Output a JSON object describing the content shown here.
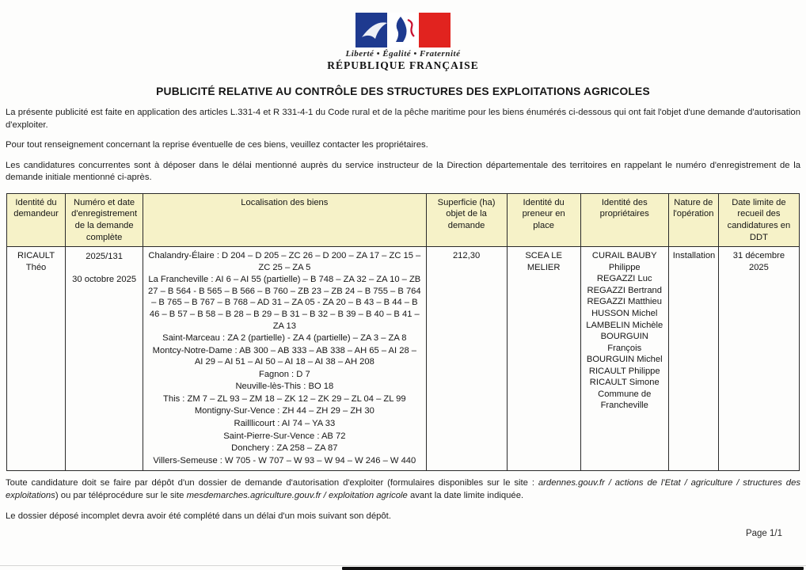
{
  "logo": {
    "motto": "Liberté • Égalité • Fraternité",
    "name": "RÉPUBLIQUE FRANÇAISE"
  },
  "title": "PUBLICITÉ RELATIVE AU CONTRÔLE DES STRUCTURES DES EXPLOITATIONS AGRICOLES",
  "intro": {
    "p1": "La présente publicité est faite en application des articles L.331-4 et R 331-4-1 du Code rural et de la pêche maritime pour les biens énumérés ci-dessous qui ont fait l'objet d'une demande d'autorisation d'exploiter.",
    "p2": "Pour tout renseignement concernant la reprise éventuelle de ces biens, veuillez contacter les propriétaires.",
    "p3": "Les candidatures concurrentes sont à déposer dans le délai mentionné auprès du service instructeur de la Direction départementale des territoires en rappelant le numéro d'enregistrement de la demande initiale mentionné ci-après."
  },
  "table": {
    "headers": [
      "Identité du demandeur",
      "Numéro et date d'enregistrement de la demande complète",
      "Localisation des biens",
      "Superficie (ha) objet de la demande",
      "Identité du preneur en place",
      "Identité des propriétaires",
      "Nature de l'opération",
      "Date limite de recueil des candidatures en DDT"
    ],
    "row": {
      "demandeur_nom": "RICAULT",
      "demandeur_prenom": "Théo",
      "numero": "2025/131",
      "date_enregistrement": "30 octobre 2025",
      "localisation": [
        "Chalandry-Élaire : D 204 – D 205 – ZC 26 – D 200 – ZA 17 – ZC 15 – ZC 25 – ZA 5",
        "La Francheville : AI 6 – AI 55 (partielle) – B 748 – ZA 32 – ZA 10 – ZB 27 – B 564 - B 565 – B 566 – B 760 – ZB 23 – ZB 24 – B 755 – B 764 – B 765 – B 767 – B 768 – AD 31 – ZA 05 - ZA 20 – B 43 – B 44 – B 46 – B 57 – B 58 – B 28 – B 29 – B 31 – B 32 – B 39 – B 40 – B 41 – ZA 13",
        "Saint-Marceau : ZA 2 (partielle) - ZA 4 (partielle) – ZA 3 – ZA 8",
        "Montcy-Notre-Dame : AB 300 – AB 333 – AB 338 – AH 65 – AI 28 – AI 29 – AI 51 – AI 50 – AI 18 – AI 38 – AH 208",
        "Fagnon : D 7",
        "Neuville-lès-This : BO 18",
        "This : ZM 7 – ZL 93 – ZM 18 – ZK 12 – ZK 29 – ZL 04 – ZL 99",
        "Montigny-Sur-Vence : ZH 44 – ZH 29 – ZH 30",
        "Railllicourt : AI 74 – YA 33",
        "Saint-Pierre-Sur-Vence : AB 72",
        "Donchery : ZA 258 – ZA 87",
        "Villers-Semeuse : W 705 - W 707 – W 93 – W 94 – W 246 – W 440"
      ],
      "superficie": "212,30",
      "preneur": "SCEA LE MELIER",
      "proprietaires": [
        "CURAIL BAUBY Philippe",
        "REGAZZI Luc",
        "REGAZZI Bertrand",
        "REGAZZI Matthieu",
        "HUSSON Michel",
        "LAMBELIN Michèle",
        "BOURGUIN François",
        "BOURGUIN Michel",
        "RICAULT Philippe",
        "RICAULT Simone",
        "Commune de Francheville"
      ],
      "nature": "Installation",
      "date_limite": "31 décembre 2025"
    }
  },
  "footer": {
    "p1_part1": "Toute candidature doit se faire par dépôt d'un dossier de demande d'autorisation d'exploiter (formulaires disponibles sur le site : ",
    "p1_italic1": "ardennes.gouv.fr / actions de l'Etat / agriculture / structures des exploitations",
    "p1_part2": ") ou par téléprocédure sur le site ",
    "p1_italic2": "mesdemarches.agriculture.gouv.fr / exploitation agricole",
    "p1_part3": " avant la date limite indiquée.",
    "p2": "Le dossier déposé incomplet devra avoir été complété dans un délai d'un mois suivant son dépôt.",
    "page_number": "Page 1/1"
  },
  "colors": {
    "header_bg": "#f6f2c8",
    "border": "#2a2a2a",
    "flag_blue": "#1e3a8f",
    "flag_red": "#e1231f"
  }
}
